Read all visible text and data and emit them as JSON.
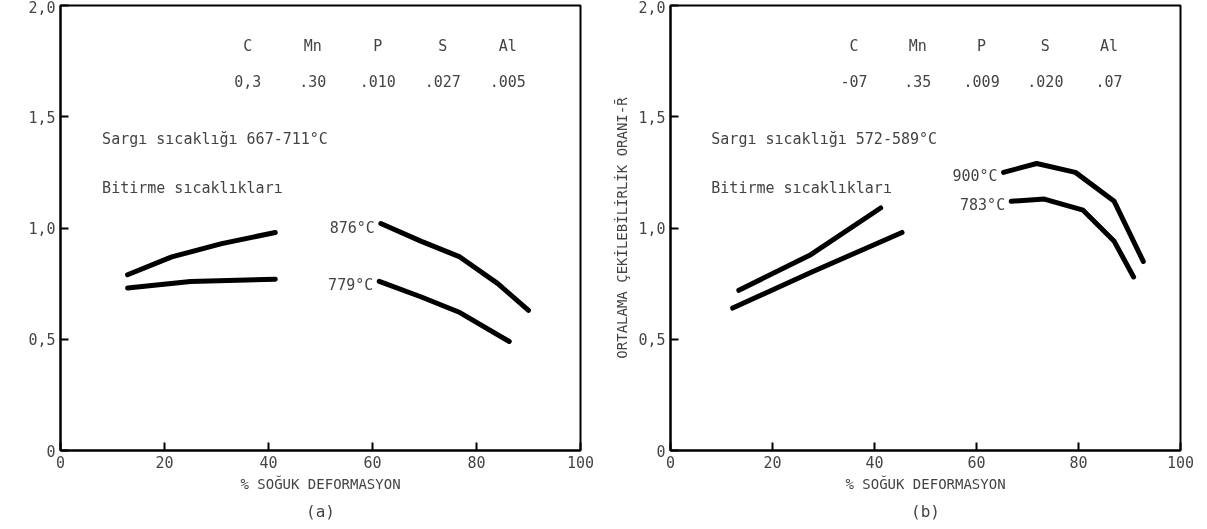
{
  "chart_data": [
    {
      "type": "line",
      "title": "(a)",
      "xlabel": "% SOĞUK DEFORMASYON",
      "xlim": [
        0,
        100
      ],
      "xticks": [
        0,
        20,
        40,
        60,
        80,
        100
      ],
      "ylim": [
        0,
        2.0
      ],
      "yticks": [
        {
          "value": 0,
          "label": "0"
        },
        {
          "value": 0.5,
          "label": "0,5"
        },
        {
          "value": 1.0,
          "label": "1,0"
        },
        {
          "value": 1.5,
          "label": "1,5"
        },
        {
          "value": 2.0,
          "label": "2,0"
        }
      ],
      "grid": false,
      "marker": "none",
      "line_style": "solid",
      "annotations": [
        "C",
        "Mn",
        "P",
        "S",
        "Al",
        "0,3",
        ".30",
        ".010",
        ".027",
        ".005",
        "Sargı sıcaklığı 667-711°C",
        "Bitirme sıcaklıkları"
      ],
      "series": [
        {
          "name": "876°C",
          "color": "#000000",
          "x": [
            12.9,
            21.4,
            31,
            41.3,
            50,
            61.6,
            69.4,
            76.8,
            84.1,
            90
          ],
          "values": [
            0.79,
            0.87,
            0.93,
            0.98,
            null,
            1.02,
            0.94,
            0.87,
            0.75,
            0.63
          ]
        },
        {
          "name": "779°C",
          "color": "#000000",
          "x": [
            12.9,
            25,
            41.3,
            50,
            61.3,
            69.4,
            76.8,
            86.3
          ],
          "values": [
            0.73,
            0.76,
            0.77,
            null,
            0.76,
            0.69,
            0.62,
            0.49
          ]
        }
      ]
    },
    {
      "type": "line",
      "title": "(b)",
      "xlabel": "% SOĞUK DEFORMASYON",
      "ylabel": "ORTALAMA ÇEKİLEBİLİRLİK ORANI-R̄",
      "xlim": [
        0,
        100
      ],
      "xticks": [
        0,
        20,
        40,
        60,
        80,
        100
      ],
      "ylim": [
        0,
        2.0
      ],
      "yticks": [
        {
          "value": 0,
          "label": "0"
        },
        {
          "value": 0.5,
          "label": "0,5"
        },
        {
          "value": 1.0,
          "label": "1,0"
        },
        {
          "value": 1.5,
          "label": "1,5"
        },
        {
          "value": 2.0,
          "label": "2,0"
        }
      ],
      "grid": false,
      "marker": "none",
      "line_style": "solid",
      "annotations": [
        "C",
        "Mn",
        "P",
        "S",
        "Al",
        "-07",
        ".35",
        ".009",
        ".020",
        ".07",
        "Sargı sıcaklığı 572-589°C",
        "Bitirme sıcaklıkları"
      ],
      "series": [
        {
          "name": "900°C",
          "color": "#000000",
          "x": [
            13.4,
            27.5,
            41.2,
            55,
            65.3,
            71.8,
            79.4,
            87,
            92.7
          ],
          "values": [
            0.72,
            0.88,
            1.09,
            null,
            1.25,
            1.29,
            1.25,
            1.12,
            0.85
          ]
        },
        {
          "name": "783°C",
          "color": "#000000",
          "x": [
            12.2,
            27.5,
            45.4,
            55,
            66.8,
            73.3,
            80.9,
            87,
            90.8
          ],
          "values": [
            0.64,
            0.8,
            0.98,
            null,
            1.12,
            1.13,
            1.08,
            0.94,
            0.78
          ]
        }
      ]
    }
  ]
}
